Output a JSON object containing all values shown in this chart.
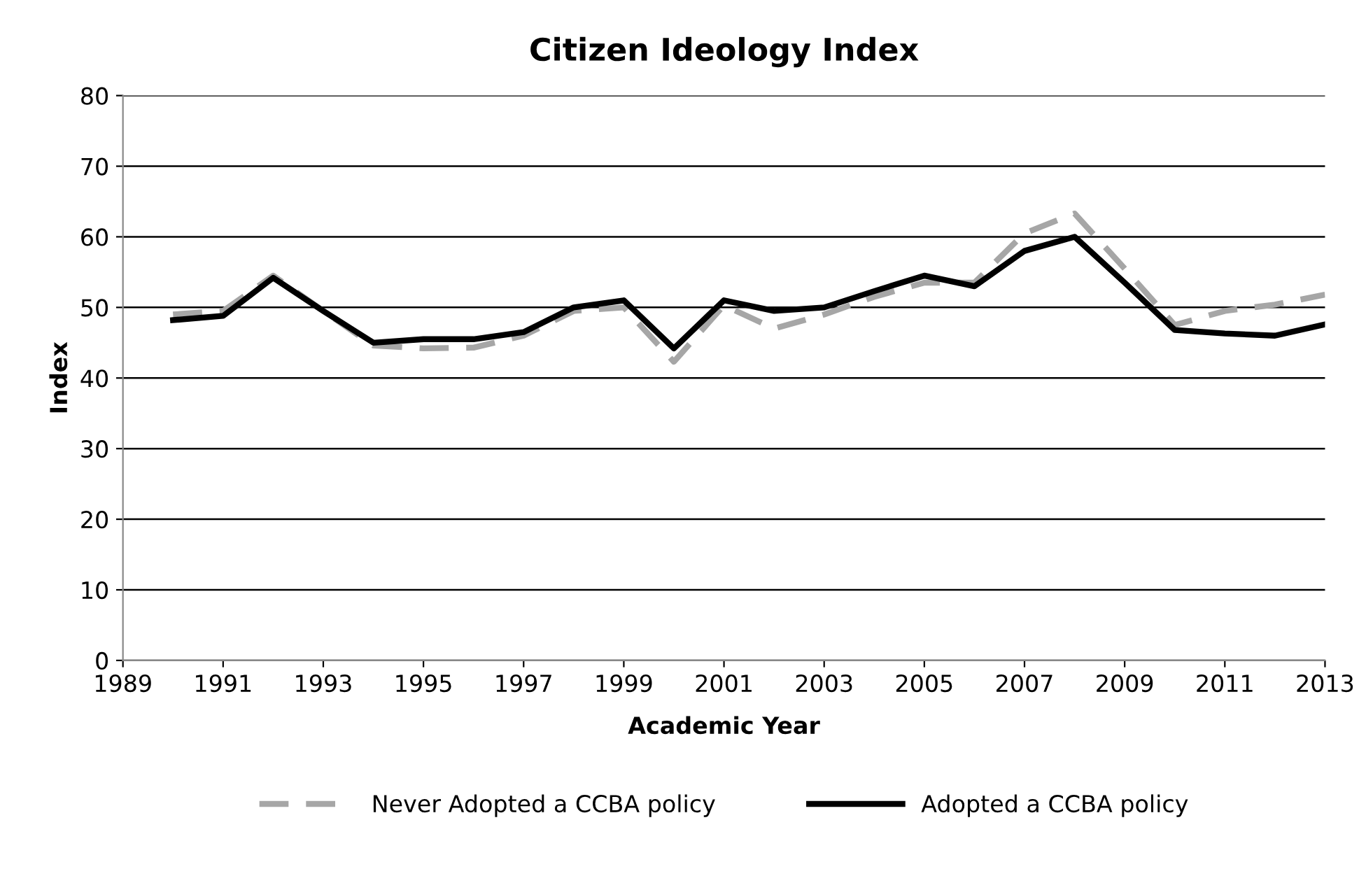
{
  "chart_data": {
    "type": "line",
    "title": "Citizen Ideology Index",
    "xlabel": "Academic Year",
    "ylabel": "Index",
    "x": [
      1990,
      1991,
      1992,
      1993,
      1994,
      1995,
      1996,
      1997,
      1998,
      1999,
      2000,
      2001,
      2002,
      2003,
      2004,
      2005,
      2006,
      2007,
      2008,
      2009,
      2010,
      2011,
      2012,
      2013
    ],
    "series": [
      {
        "name": "Never Adopted a CCBA policy",
        "color": "#a6a6a6",
        "line_style": "dashed",
        "values": [
          49,
          49.5,
          54.5,
          49.5,
          44.6,
          44.2,
          44.3,
          46,
          49.5,
          50,
          42.3,
          50.3,
          47,
          49,
          51.5,
          53.5,
          53.5,
          60.5,
          63.3,
          55.5,
          47.5,
          49.5,
          50.4,
          51.8
        ]
      },
      {
        "name": "Adopted a CCBA policy",
        "color": "#000000",
        "line_style": "solid",
        "values": [
          48.2,
          48.8,
          54.2,
          49.5,
          45,
          45.5,
          45.5,
          46.5,
          50,
          51,
          44.2,
          51,
          49.5,
          50,
          52.3,
          54.5,
          53,
          58,
          60,
          53.5,
          46.8,
          46.3,
          46,
          47.6
        ]
      }
    ],
    "xlim": [
      1989,
      2013
    ],
    "xticks": [
      1989,
      1991,
      1993,
      1995,
      1997,
      1999,
      2001,
      2003,
      2005,
      2007,
      2009,
      2011,
      2013
    ],
    "ylim": [
      0,
      80
    ],
    "yticks": [
      0,
      10,
      20,
      30,
      40,
      50,
      60,
      70,
      80
    ],
    "grid": "y",
    "legend": "bottom"
  }
}
